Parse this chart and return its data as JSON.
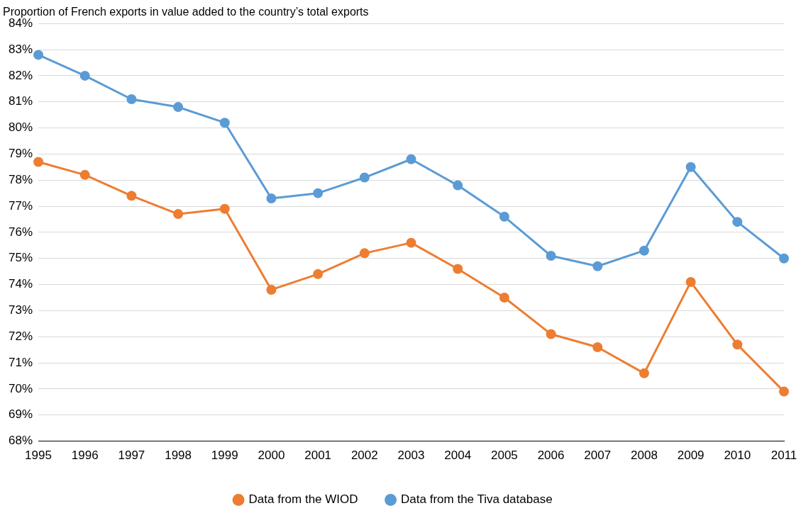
{
  "chart_data": {
    "type": "line",
    "title": "Proportion of French exports in value added to the country’s total exports",
    "categories": [
      "1995",
      "1996",
      "1997",
      "1998",
      "1999",
      "2000",
      "2001",
      "2002",
      "2003",
      "2004",
      "2005",
      "2006",
      "2007",
      "2008",
      "2009",
      "2010",
      "2011"
    ],
    "series": [
      {
        "name": "Data from the WIOD",
        "color": "#ed7d31",
        "values": [
          78.7,
          78.2,
          77.4,
          76.7,
          76.9,
          73.8,
          74.4,
          75.2,
          75.6,
          74.6,
          73.5,
          72.1,
          71.6,
          70.6,
          74.1,
          71.7,
          69.9
        ]
      },
      {
        "name": "Data from the Tiva database",
        "color": "#5b9bd5",
        "values": [
          82.8,
          82.0,
          81.1,
          80.8,
          80.2,
          77.3,
          77.5,
          78.1,
          78.8,
          77.8,
          76.6,
          75.1,
          74.7,
          75.3,
          78.5,
          76.4,
          75.0
        ]
      }
    ],
    "ylim": [
      68,
      84
    ],
    "yticks": [
      {
        "value": 68,
        "label": "68%"
      },
      {
        "value": 69,
        "label": "69%"
      },
      {
        "value": 70,
        "label": "70%"
      },
      {
        "value": 71,
        "label": "71%"
      },
      {
        "value": 72,
        "label": "72%"
      },
      {
        "value": 73,
        "label": "73%"
      },
      {
        "value": 74,
        "label": "74%"
      },
      {
        "value": 75,
        "label": "75%"
      },
      {
        "value": 76,
        "label": "76%"
      },
      {
        "value": 77,
        "label": "77%"
      },
      {
        "value": 78,
        "label": "78%"
      },
      {
        "value": 79,
        "label": "79%"
      },
      {
        "value": 80,
        "label": "80%"
      },
      {
        "value": 81,
        "label": "81%"
      },
      {
        "value": 82,
        "label": "82%"
      },
      {
        "value": 83,
        "label": "83%"
      },
      {
        "value": 84,
        "label": "84%"
      }
    ],
    "grid": "y",
    "legend": "bottom",
    "marker": "circle",
    "line_style": "solid"
  }
}
